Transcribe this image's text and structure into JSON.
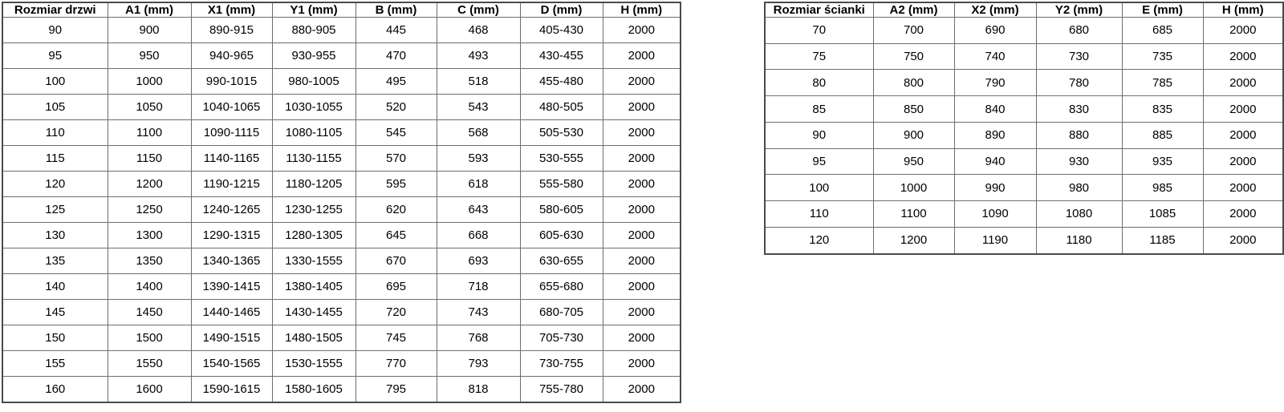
{
  "page": {
    "background_color": "#ffffff",
    "text_color": "#000000",
    "border_inner_color": "#6e6e6e",
    "border_outer_color": "#4a4a4a"
  },
  "tables": [
    {
      "name": "door-sizes",
      "headers": [
        "Rozmiar drzwi",
        "A1 (mm)",
        "X1 (mm)",
        "Y1 (mm)",
        "B (mm)",
        "C (mm)",
        "D (mm)",
        "H (mm)"
      ],
      "rows": [
        [
          "90",
          "900",
          "890-915",
          "880-905",
          "445",
          "468",
          "405-430",
          "2000"
        ],
        [
          "95",
          "950",
          "940-965",
          "930-955",
          "470",
          "493",
          "430-455",
          "2000"
        ],
        [
          "100",
          "1000",
          "990-1015",
          "980-1005",
          "495",
          "518",
          "455-480",
          "2000"
        ],
        [
          "105",
          "1050",
          "1040-1065",
          "1030-1055",
          "520",
          "543",
          "480-505",
          "2000"
        ],
        [
          "110",
          "1100",
          "1090-1115",
          "1080-1105",
          "545",
          "568",
          "505-530",
          "2000"
        ],
        [
          "115",
          "1150",
          "1140-1165",
          "1130-1155",
          "570",
          "593",
          "530-555",
          "2000"
        ],
        [
          "120",
          "1200",
          "1190-1215",
          "1180-1205",
          "595",
          "618",
          "555-580",
          "2000"
        ],
        [
          "125",
          "1250",
          "1240-1265",
          "1230-1255",
          "620",
          "643",
          "580-605",
          "2000"
        ],
        [
          "130",
          "1300",
          "1290-1315",
          "1280-1305",
          "645",
          "668",
          "605-630",
          "2000"
        ],
        [
          "135",
          "1350",
          "1340-1365",
          "1330-1555",
          "670",
          "693",
          "630-655",
          "2000"
        ],
        [
          "140",
          "1400",
          "1390-1415",
          "1380-1405",
          "695",
          "718",
          "655-680",
          "2000"
        ],
        [
          "145",
          "1450",
          "1440-1465",
          "1430-1455",
          "720",
          "743",
          "680-705",
          "2000"
        ],
        [
          "150",
          "1500",
          "1490-1515",
          "1480-1505",
          "745",
          "768",
          "705-730",
          "2000"
        ],
        [
          "155",
          "1550",
          "1540-1565",
          "1530-1555",
          "770",
          "793",
          "730-755",
          "2000"
        ],
        [
          "160",
          "1600",
          "1590-1615",
          "1580-1605",
          "795",
          "818",
          "755-780",
          "2000"
        ]
      ]
    },
    {
      "name": "wall-sizes",
      "headers": [
        "Rozmiar ścianki",
        "A2 (mm)",
        "X2 (mm)",
        "Y2 (mm)",
        "E (mm)",
        "H (mm)"
      ],
      "rows": [
        [
          "70",
          "700",
          "690",
          "680",
          "685",
          "2000"
        ],
        [
          "75",
          "750",
          "740",
          "730",
          "735",
          "2000"
        ],
        [
          "80",
          "800",
          "790",
          "780",
          "785",
          "2000"
        ],
        [
          "85",
          "850",
          "840",
          "830",
          "835",
          "2000"
        ],
        [
          "90",
          "900",
          "890",
          "880",
          "885",
          "2000"
        ],
        [
          "95",
          "950",
          "940",
          "930",
          "935",
          "2000"
        ],
        [
          "100",
          "1000",
          "990",
          "980",
          "985",
          "2000"
        ],
        [
          "110",
          "1100",
          "1090",
          "1080",
          "1085",
          "2000"
        ],
        [
          "120",
          "1200",
          "1190",
          "1180",
          "1185",
          "2000"
        ]
      ]
    }
  ]
}
